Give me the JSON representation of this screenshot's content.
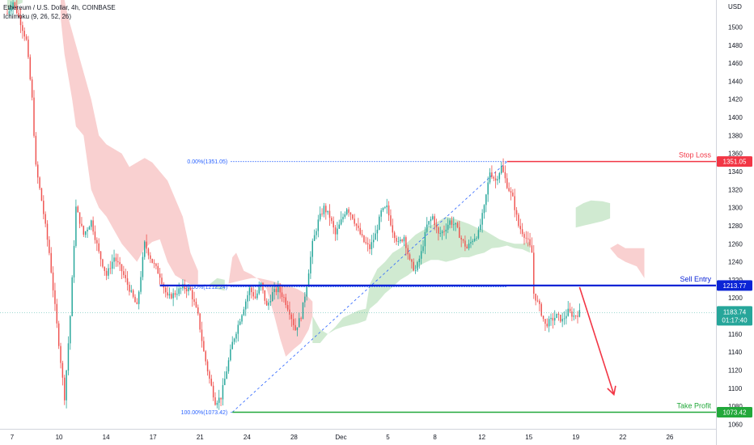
{
  "header": {
    "title": "Ethereum / U.S. Dollar, 4h, COINBASE",
    "indicator": "Ichimoku (9, 26, 52, 26)"
  },
  "chart_data": {
    "type": "candlestick",
    "axis_unit": "USD",
    "ylim": [
      1055,
      1530
    ],
    "y_ticks": [
      1060,
      1080,
      1100,
      1120,
      1140,
      1160,
      1180,
      1200,
      1220,
      1240,
      1260,
      1280,
      1300,
      1320,
      1340,
      1360,
      1380,
      1400,
      1420,
      1440,
      1460,
      1480,
      1500,
      1520
    ],
    "x_ticks": [
      "7",
      "10",
      "14",
      "17",
      "21",
      "24",
      "28",
      "Dec",
      "5",
      "8",
      "12",
      "15",
      "19",
      "22",
      "26"
    ],
    "colors": {
      "up": "#26a69a",
      "down": "#ef5350",
      "kumo_bear": "#f8c8c8",
      "kumo_bull": "#c8e6c9",
      "stop": "#f23645",
      "entry": "#0b24d6",
      "profit": "#22a83a",
      "fib": "#2962ff",
      "arrow": "#f23645"
    },
    "price_path": [
      [
        0,
        1515
      ],
      [
        3,
        1528
      ],
      [
        6,
        1512
      ],
      [
        10,
        1485
      ],
      [
        13,
        1420
      ],
      [
        15,
        1345
      ],
      [
        18,
        1308
      ],
      [
        22,
        1250
      ],
      [
        26,
        1170
      ],
      [
        30,
        1090
      ],
      [
        33,
        1180
      ],
      [
        36,
        1300
      ],
      [
        40,
        1270
      ],
      [
        44,
        1285
      ],
      [
        48,
        1250
      ],
      [
        52,
        1225
      ],
      [
        56,
        1245
      ],
      [
        60,
        1230
      ],
      [
        64,
        1210
      ],
      [
        68,
        1190
      ],
      [
        72,
        1260
      ],
      [
        76,
        1240
      ],
      [
        80,
        1225
      ],
      [
        84,
        1200
      ],
      [
        88,
        1205
      ],
      [
        92,
        1212
      ],
      [
        96,
        1208
      ],
      [
        100,
        1180
      ],
      [
        103,
        1140
      ],
      [
        106,
        1110
      ],
      [
        109,
        1085
      ],
      [
        112,
        1090
      ],
      [
        115,
        1120
      ],
      [
        118,
        1150
      ],
      [
        121,
        1170
      ],
      [
        124,
        1190
      ],
      [
        127,
        1210
      ],
      [
        130,
        1200
      ],
      [
        133,
        1215
      ],
      [
        136,
        1190
      ],
      [
        139,
        1205
      ],
      [
        142,
        1210
      ],
      [
        145,
        1200
      ],
      [
        148,
        1185
      ],
      [
        151,
        1165
      ],
      [
        154,
        1180
      ],
      [
        157,
        1215
      ],
      [
        160,
        1260
      ],
      [
        163,
        1285
      ],
      [
        166,
        1300
      ],
      [
        169,
        1290
      ],
      [
        172,
        1270
      ],
      [
        175,
        1285
      ],
      [
        178,
        1300
      ],
      [
        181,
        1290
      ],
      [
        184,
        1275
      ],
      [
        187,
        1262
      ],
      [
        190,
        1255
      ],
      [
        193,
        1270
      ],
      [
        196,
        1295
      ],
      [
        199,
        1300
      ],
      [
        202,
        1275
      ],
      [
        205,
        1260
      ],
      [
        208,
        1268
      ],
      [
        211,
        1240
      ],
      [
        214,
        1230
      ],
      [
        217,
        1250
      ],
      [
        220,
        1280
      ],
      [
        223,
        1290
      ],
      [
        226,
        1270
      ],
      [
        229,
        1275
      ],
      [
        232,
        1285
      ],
      [
        235,
        1280
      ],
      [
        238,
        1265
      ],
      [
        241,
        1255
      ],
      [
        244,
        1265
      ],
      [
        247,
        1272
      ],
      [
        250,
        1300
      ],
      [
        253,
        1340
      ],
      [
        256,
        1330
      ],
      [
        259,
        1345
      ],
      [
        262,
        1325
      ],
      [
        265,
        1310
      ],
      [
        268,
        1280
      ],
      [
        271,
        1270
      ],
      [
        273,
        1262
      ],
      [
        275,
        1250
      ],
      [
        276,
        1205
      ],
      [
        279,
        1190
      ],
      [
        282,
        1170
      ],
      [
        285,
        1175
      ],
      [
        288,
        1180
      ],
      [
        291,
        1175
      ],
      [
        294,
        1185
      ],
      [
        297,
        1180
      ],
      [
        300,
        1183.74
      ]
    ],
    "kumo_bearish": [
      [
        [
          28,
          1530
        ],
        [
          28,
          1510
        ],
        [
          30,
          1470
        ],
        [
          34,
          1420
        ],
        [
          36,
          1390
        ],
        [
          40,
          1380
        ],
        [
          44,
          1320
        ],
        [
          48,
          1300
        ],
        [
          52,
          1290
        ],
        [
          56,
          1275
        ],
        [
          60,
          1260
        ],
        [
          64,
          1250
        ],
        [
          68,
          1240
        ],
        [
          72,
          1255
        ],
        [
          76,
          1262
        ],
        [
          80,
          1265
        ],
        [
          84,
          1240
        ],
        [
          88,
          1225
        ],
        [
          92,
          1220
        ],
        [
          96,
          1215
        ],
        [
          100,
          1215
        ],
        [
          100,
          1230
        ],
        [
          96,
          1250
        ],
        [
          92,
          1290
        ],
        [
          88,
          1310
        ],
        [
          84,
          1330
        ],
        [
          80,
          1340
        ],
        [
          76,
          1350
        ],
        [
          72,
          1355
        ],
        [
          68,
          1350
        ],
        [
          64,
          1345
        ],
        [
          60,
          1360
        ],
        [
          56,
          1365
        ],
        [
          52,
          1370
        ],
        [
          48,
          1380
        ],
        [
          44,
          1420
        ],
        [
          40,
          1450
        ],
        [
          36,
          1480
        ],
        [
          32,
          1510
        ],
        [
          30,
          1530
        ]
      ],
      [
        [
          116,
          1216
        ],
        [
          118,
          1245
        ],
        [
          120,
          1250
        ],
        [
          122,
          1240
        ],
        [
          124,
          1230
        ],
        [
          128,
          1226
        ],
        [
          132,
          1220
        ],
        [
          136,
          1210
        ],
        [
          140,
          1180
        ],
        [
          143,
          1155
        ],
        [
          146,
          1135
        ],
        [
          150,
          1143
        ],
        [
          154,
          1150
        ],
        [
          158,
          1165
        ],
        [
          160,
          1180
        ],
        [
          160,
          1196
        ],
        [
          156,
          1205
        ],
        [
          152,
          1210
        ],
        [
          148,
          1213
        ],
        [
          144,
          1215
        ],
        [
          140,
          1218
        ],
        [
          136,
          1220
        ],
        [
          132,
          1222
        ],
        [
          128,
          1222
        ],
        [
          124,
          1220
        ],
        [
          120,
          1218
        ]
      ],
      [
        [
          316,
          1255
        ],
        [
          320,
          1245
        ],
        [
          324,
          1240
        ],
        [
          330,
          1235
        ],
        [
          334,
          1222
        ],
        [
          334,
          1255
        ],
        [
          330,
          1255
        ],
        [
          324,
          1255
        ],
        [
          320,
          1260
        ]
      ]
    ],
    "kumo_bullish": [
      [
        [
          160,
          1180
        ],
        [
          164,
          1165
        ],
        [
          168,
          1160
        ],
        [
          172,
          1168
        ],
        [
          176,
          1178
        ],
        [
          180,
          1182
        ],
        [
          184,
          1186
        ],
        [
          188,
          1188
        ],
        [
          190,
          1215
        ],
        [
          194,
          1232
        ],
        [
          198,
          1240
        ],
        [
          202,
          1250
        ],
        [
          206,
          1255
        ],
        [
          210,
          1262
        ],
        [
          214,
          1270
        ],
        [
          218,
          1275
        ],
        [
          222,
          1280
        ],
        [
          226,
          1285
        ],
        [
          230,
          1290
        ],
        [
          234,
          1288
        ],
        [
          238,
          1285
        ],
        [
          242,
          1282
        ],
        [
          246,
          1278
        ],
        [
          250,
          1275
        ],
        [
          254,
          1270
        ],
        [
          258,
          1265
        ],
        [
          262,
          1262
        ],
        [
          266,
          1260
        ],
        [
          270,
          1260
        ],
        [
          274,
          1262
        ],
        [
          274,
          1250
        ],
        [
          270,
          1254
        ],
        [
          266,
          1255
        ],
        [
          262,
          1258
        ],
        [
          258,
          1256
        ],
        [
          254,
          1255
        ],
        [
          250,
          1250
        ],
        [
          246,
          1248
        ],
        [
          242,
          1245
        ],
        [
          238,
          1245
        ],
        [
          234,
          1242
        ],
        [
          230,
          1240
        ],
        [
          226,
          1242
        ],
        [
          222,
          1242
        ],
        [
          218,
          1238
        ],
        [
          214,
          1232
        ],
        [
          210,
          1225
        ],
        [
          206,
          1220
        ],
        [
          202,
          1212
        ],
        [
          198,
          1205
        ],
        [
          194,
          1195
        ],
        [
          190,
          1188
        ],
        [
          188,
          1175
        ],
        [
          184,
          1172
        ],
        [
          180,
          1170
        ],
        [
          176,
          1168
        ],
        [
          172,
          1165
        ],
        [
          168,
          1160
        ],
        [
          164,
          1150
        ],
        [
          160,
          1150
        ]
      ],
      [
        [
          0,
          1518
        ],
        [
          4,
          1523
        ],
        [
          8,
          1527
        ],
        [
          8,
          1530
        ],
        [
          0,
          1530
        ]
      ],
      [
        [
          106,
          1215
        ],
        [
          110,
          1210
        ],
        [
          114,
          1208
        ],
        [
          114,
          1220
        ],
        [
          110,
          1222
        ]
      ],
      [
        [
          298,
          1300
        ],
        [
          302,
          1305
        ],
        [
          306,
          1308
        ],
        [
          312,
          1307
        ],
        [
          316,
          1305
        ],
        [
          316,
          1288
        ],
        [
          312,
          1285
        ],
        [
          306,
          1282
        ],
        [
          302,
          1280
        ],
        [
          298,
          1278
        ]
      ]
    ],
    "stop_loss": {
      "label": "Stop Loss",
      "price": 1351.05,
      "tag": "1351.05"
    },
    "sell_entry": {
      "label": "Sell Entry",
      "price": 1213.77,
      "tag": "1213.77"
    },
    "take_profit": {
      "label": "Take Profit",
      "price": 1073.42,
      "tag": "1073.42"
    },
    "last_price": {
      "price": 1183.74,
      "tag": "1183.74",
      "countdown": "01:17:40"
    },
    "fib": {
      "start": {
        "x": 118,
        "price": 1073.42
      },
      "end": {
        "x": 262,
        "price": 1351.05
      },
      "levels": [
        {
          "label": "0.00%(1351.05)",
          "price": 1351.05
        },
        {
          "label": "50.00%(1212.24)",
          "price": 1212.24
        },
        {
          "label": "100.00%(1073.42)",
          "price": 1073.42
        }
      ]
    },
    "forecast_arrow": {
      "from": {
        "x": 300,
        "price": 1212
      },
      "to": {
        "x": 318,
        "price": 1093
      }
    }
  }
}
